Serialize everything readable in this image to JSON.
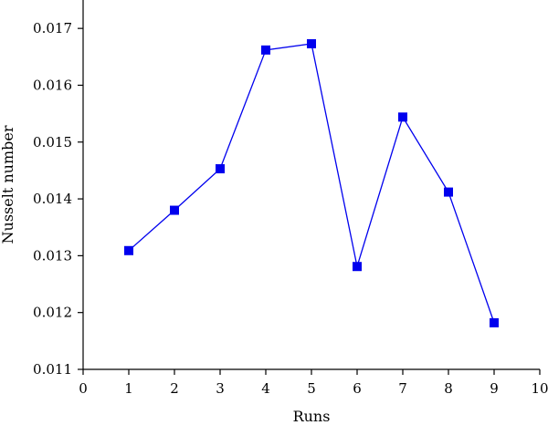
{
  "chart_data": {
    "type": "line",
    "xlabel": "Runs",
    "ylabel": "Nusselt number",
    "xlim": [
      0,
      10
    ],
    "ylim": [
      0.011,
      0.0175
    ],
    "xticks": [
      "0",
      "1",
      "2",
      "3",
      "4",
      "5",
      "6",
      "7",
      "8",
      "9",
      "10"
    ],
    "yticks": [
      "0.011",
      "0.012",
      "0.013",
      "0.014",
      "0.015",
      "0.016",
      "0.017"
    ],
    "grid": false,
    "series": [
      {
        "x": [
          1,
          2,
          3,
          4,
          5,
          6,
          7,
          8,
          9
        ],
        "values": [
          0.01309,
          0.0138,
          0.01453,
          0.01662,
          0.01673,
          0.01281,
          0.01544,
          0.01412,
          0.01182
        ],
        "color": "#0000ee",
        "marker": "square"
      }
    ]
  }
}
